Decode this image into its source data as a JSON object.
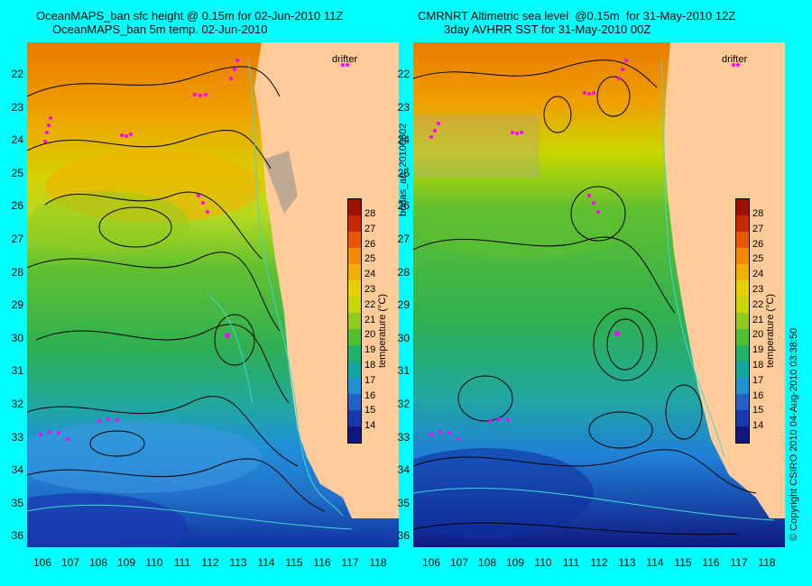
{
  "left_panel": {
    "title_line1": "OceanMAPS_ban sfc height @ 0.15m for 02-Jun-2010 11Z",
    "title_line2": "OceanMAPS_ban 5m temp. 02-Jun-2010",
    "drifter_label": "drifter",
    "colorbar_label": "temperature (°C)"
  },
  "right_panel": {
    "title_line1": "CMRNRT Altimetric sea level  @0.15m  for 31-May-2010 12Z",
    "title_line2": "3day AVHRR SST for 31-May-2010 00Z",
    "drifter_label": "drifter",
    "colorbar_label": "temperature (°C)"
  },
  "side_label": "bodas_an_20100602",
  "copyright": "© Copyright CSIRO 2010   04-Aug-2010 03:38:50",
  "axes": {
    "x_ticks": [
      "106",
      "107",
      "108",
      "109",
      "110",
      "111",
      "112",
      "113",
      "114",
      "115",
      "116",
      "117",
      "118"
    ],
    "y_ticks": [
      "22",
      "23",
      "24",
      "25",
      "26",
      "27",
      "28",
      "29",
      "30",
      "31",
      "32",
      "33",
      "34",
      "35",
      "36"
    ]
  },
  "colorbar": {
    "ticks": [
      "28",
      "27",
      "26",
      "25",
      "24",
      "23",
      "22",
      "21",
      "20",
      "19",
      "18",
      "17",
      "16",
      "15",
      "14"
    ],
    "colors": [
      "#a01000",
      "#c82800",
      "#e85800",
      "#f08800",
      "#f0b000",
      "#e8d000",
      "#c8d800",
      "#90cc20",
      "#50c030",
      "#20b068",
      "#10a8a0",
      "#2090d0",
      "#2060c8",
      "#1838b0",
      "#101880"
    ]
  },
  "colors": {
    "background": "#00ffff",
    "land": "#ffcc99",
    "marker": "#ff00ff"
  }
}
